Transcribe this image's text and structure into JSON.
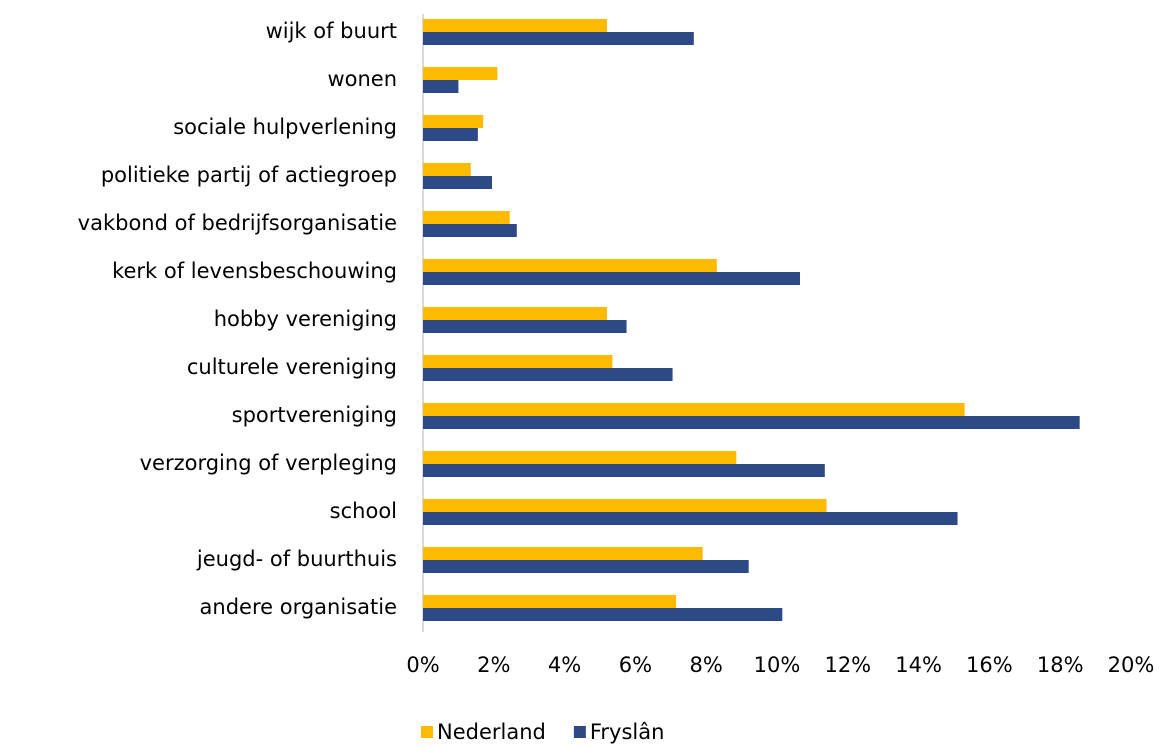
{
  "chart_data": {
    "type": "bar",
    "orientation": "horizontal",
    "categories": [
      "wijk of buurt",
      "wonen",
      "sociale hulpverlening",
      "politieke partij of actiegroep",
      "vakbond of bedrijfsorganisatie",
      "kerk of levensbeschouwing",
      "hobby vereniging",
      "culturele vereniging",
      "sportvereniging",
      "verzorging of verpleging",
      "school",
      "jeugd- of buurthuis",
      "andere organisatie"
    ],
    "series": [
      {
        "name": "Nederland",
        "color": "#ffb900",
        "values": [
          5.2,
          2.1,
          1.7,
          1.35,
          2.45,
          8.3,
          5.2,
          5.35,
          15.3,
          8.85,
          11.4,
          7.9,
          7.15
        ]
      },
      {
        "name": "Fryslân",
        "color": "#2e4a86",
        "values": [
          7.65,
          1.0,
          1.55,
          1.95,
          2.65,
          10.65,
          5.75,
          7.05,
          18.55,
          11.35,
          15.1,
          9.2,
          10.15
        ]
      }
    ],
    "xlim": [
      0,
      20
    ],
    "xticks": [
      {
        "value": 0,
        "label": "0%"
      },
      {
        "value": 2,
        "label": "2%"
      },
      {
        "value": 4,
        "label": "4%"
      },
      {
        "value": 6,
        "label": "6%"
      },
      {
        "value": 8,
        "label": "8%"
      },
      {
        "value": 10,
        "label": "10%"
      },
      {
        "value": 12,
        "label": "12%"
      },
      {
        "value": 14,
        "label": "14%"
      },
      {
        "value": 16,
        "label": "16%"
      },
      {
        "value": 18,
        "label": "18%"
      },
      {
        "value": 20,
        "label": "20%"
      }
    ],
    "grid": false,
    "legend": "bottom"
  }
}
